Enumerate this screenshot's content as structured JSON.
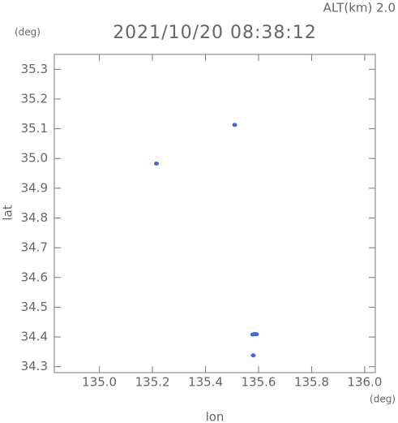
{
  "chart_data": {
    "type": "scatter",
    "title": "2021/10/20 08:38:12",
    "annotation": "ALT(km) 2.0",
    "y_unit": "(deg)",
    "x_unit": "(deg)",
    "xlabel": "lon",
    "ylabel": "lat",
    "x": [
      135.215,
      135.51,
      135.578,
      135.585,
      135.592,
      135.58
    ],
    "values": [
      34.983,
      35.113,
      34.408,
      34.41,
      34.409,
      34.338
    ],
    "color": "#4169e1",
    "xlim": [
      134.83,
      136.04
    ],
    "ylim": [
      34.28,
      35.35
    ],
    "xticks": [
      {
        "value": 135,
        "label": "135.0"
      },
      135.2,
      135.4,
      135.6,
      135.8,
      {
        "value": 136,
        "label": "136.0"
      }
    ],
    "yticks": [
      34.3,
      34.4,
      34.5,
      34.6,
      34.7,
      34.8,
      34.9,
      {
        "value": 35,
        "label": "35.0"
      },
      35.1,
      35.2,
      35.3
    ]
  }
}
